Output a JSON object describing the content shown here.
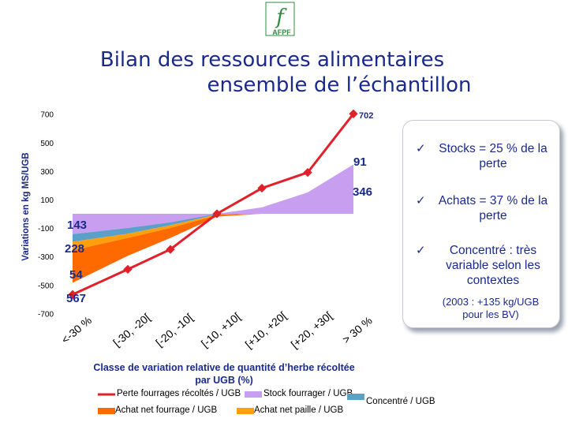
{
  "logo": {
    "letter": "f",
    "text": "AFPF"
  },
  "title": {
    "line1": "Bilan des ressources alimentaires",
    "line2": "ensemble de l’échantillon"
  },
  "colors": {
    "stock": "#c89ef0",
    "concentre": "#5aa0c8",
    "paille": "#ff9f10",
    "fourrage": "#ff6a00",
    "perte": "#e0202a",
    "axis_text": "#000000",
    "title": "#1a2a8c"
  },
  "chart_data": {
    "type": "area",
    "ylabel": "Variations en kg MS/UGB",
    "xlabel": "Classe de variation relative de quantité d’herbe récoltée par UGB (%)",
    "xlabel_line1": "Classe de variation relative de quantité d’herbe récoltée",
    "xlabel_line2": "par UGB (%)",
    "ylim": [
      -700,
      700
    ],
    "yticks": [
      "700",
      "500",
      "300",
      "100",
      "-100",
      "-300",
      "-500",
      "-700"
    ],
    "yticks_values": [
      700,
      500,
      300,
      100,
      -100,
      -300,
      -500,
      -700
    ],
    "categories": [
      "<-30 %",
      "[-30, -20[",
      "[-20, -10[",
      "[-10, +10[",
      "[+10, +20[",
      "[+20, +30[",
      "> 30 %"
    ],
    "series": [
      {
        "name": "Perte fourrages récoltés / UGB",
        "kind": "line",
        "values": [
          -567,
          -390,
          -250,
          0,
          180,
          290,
          702
        ]
      },
      {
        "name": "Stock fourrager / UGB",
        "kind": "area_diverging",
        "values": [
          -143,
          -100,
          -60,
          0,
          45,
          150,
          346
        ]
      },
      {
        "name": "Concentré / UGB",
        "kind": "area_negative",
        "values": [
          -54,
          -40,
          -20,
          -5,
          0,
          0,
          0
        ]
      },
      {
        "name": "Achat net paille / UGB",
        "kind": "area_negative",
        "values": [
          -60,
          -30,
          -20,
          -5,
          0,
          0,
          0
        ]
      },
      {
        "name": "Achat net fourrage / UGB",
        "kind": "area_negative",
        "values": [
          -228,
          -125,
          -70,
          -10,
          0,
          0,
          0
        ]
      }
    ],
    "data_labels": [
      "702",
      "91",
      "346",
      "143",
      "228",
      "54",
      "567"
    ],
    "legend": [
      "Perte fourrages récoltés / UGB",
      "Stock fourrager / UGB",
      "Concentré / UGB",
      "Achat net fourrage / UGB",
      "Achat net paille / UGB"
    ]
  },
  "sidebox": {
    "bullets": [
      "Stocks = 25 % de la perte",
      "Achats = 37 % de la perte",
      "Concentré : très variable selon les contextes"
    ],
    "check": "✓",
    "note": "(2003 : +135 kg/UGB pour les BV)"
  }
}
